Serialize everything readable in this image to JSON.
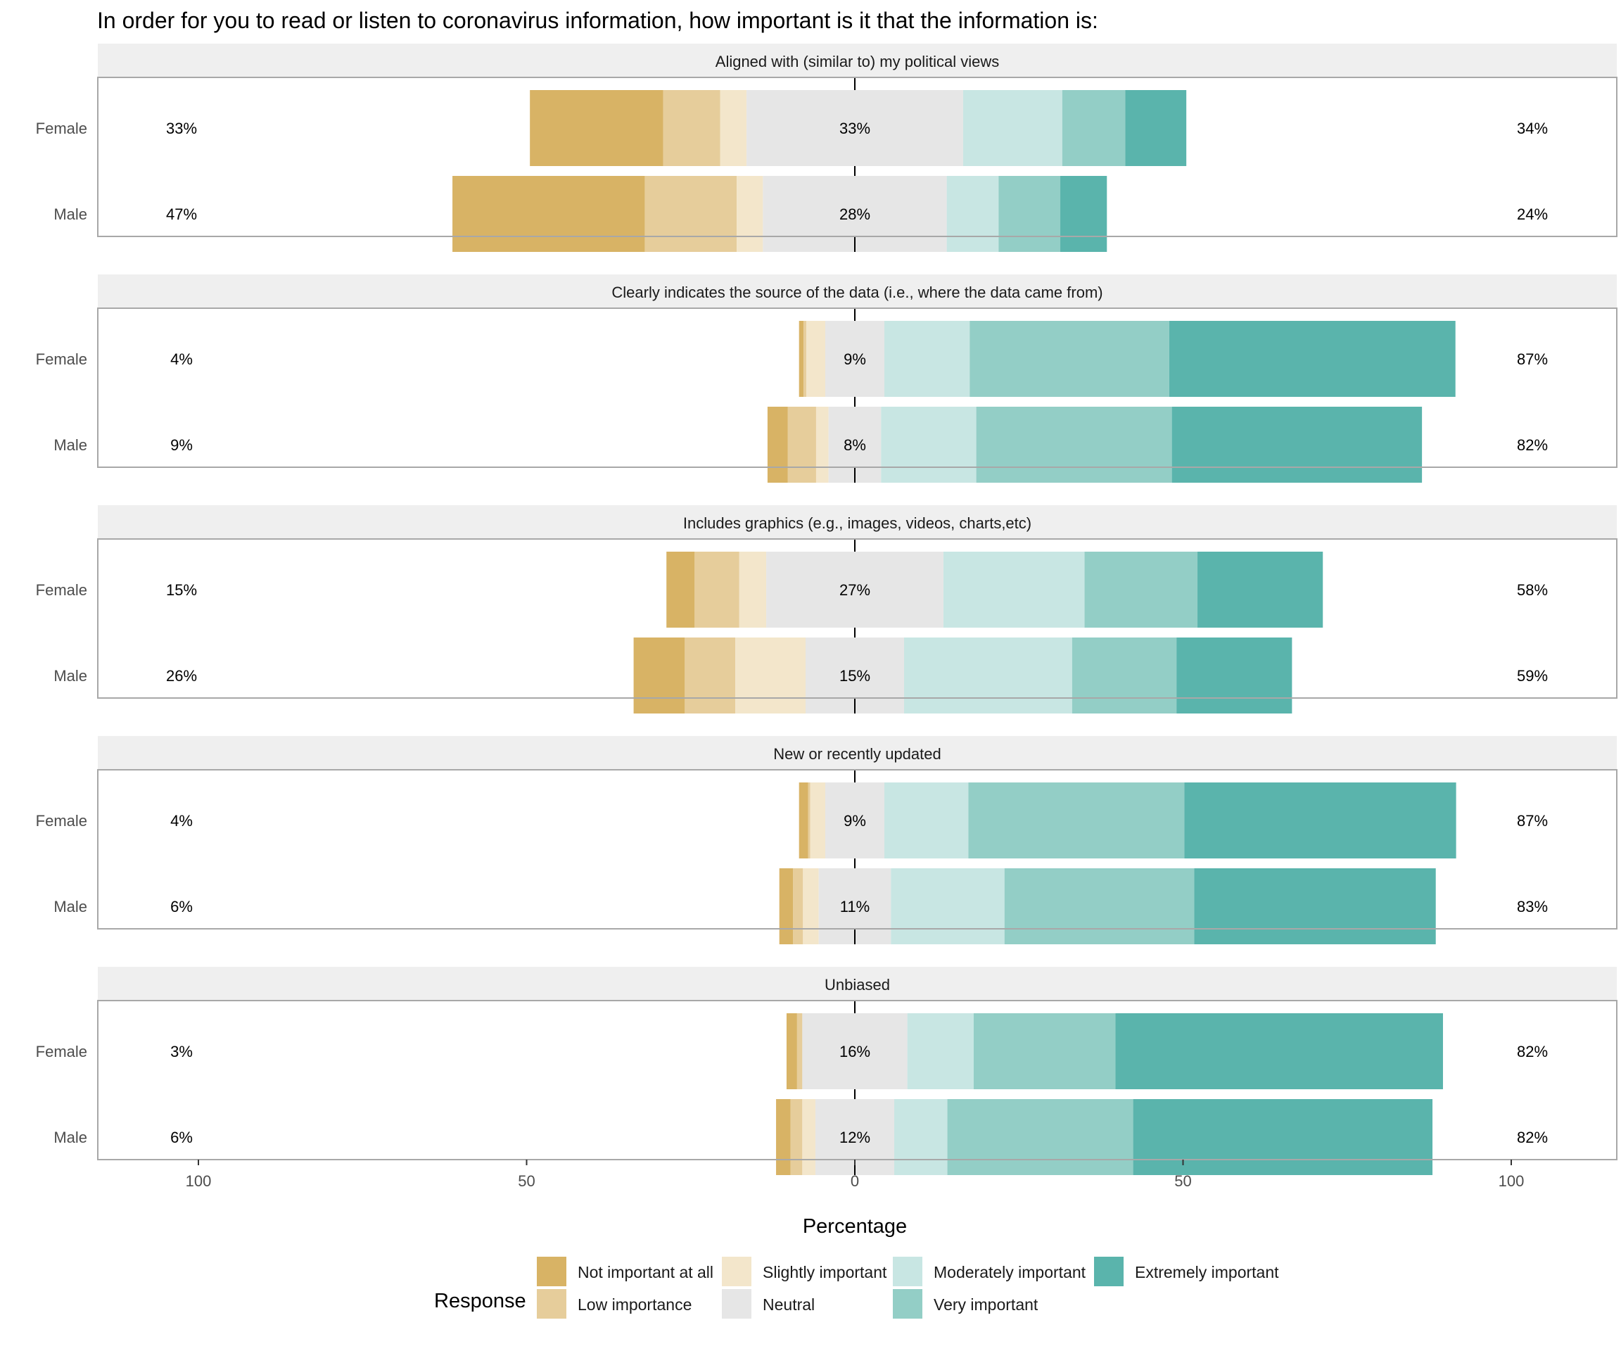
{
  "chart_data": {
    "type": "bar",
    "orientation": "horizontal-diverging",
    "title": "In order for you to read or listen to coronavirus information, how important is it that the information is:",
    "xlabel": "Percentage",
    "xlim": [
      -100,
      100
    ],
    "x_ticks": [
      -100,
      -50,
      0,
      50,
      100
    ],
    "x_tick_labels": [
      "100",
      "50",
      "0",
      "50",
      "100"
    ],
    "legend_title": "Response",
    "legend_position": "bottom",
    "grid": false,
    "categories": [
      "Female",
      "Male"
    ],
    "response_levels": [
      {
        "name": "Not important at all",
        "color": "#D8B365"
      },
      {
        "name": "Low importance",
        "color": "#E6CD9B"
      },
      {
        "name": "Slightly important",
        "color": "#F3E6CB"
      },
      {
        "name": "Neutral",
        "color": "#E6E6E6"
      },
      {
        "name": "Moderately important",
        "color": "#C8E6E3"
      },
      {
        "name": "Very important",
        "color": "#93CEC6"
      },
      {
        "name": "Extremely important",
        "color": "#5AB4AC"
      }
    ],
    "panels": [
      {
        "title": "Aligned with (similar to) my political views",
        "rows": [
          {
            "group": "Female",
            "values": [
              20.3,
              8.7,
              4.0,
              33.0,
              15.1,
              9.6,
              9.3
            ],
            "left_label": "33%",
            "neutral_label": "33%",
            "right_label": "34%"
          },
          {
            "group": "Male",
            "values": [
              29.3,
              14.0,
              4.0,
              28.0,
              7.9,
              9.4,
              7.1
            ],
            "left_label": "47%",
            "neutral_label": "28%",
            "right_label": "24%"
          }
        ]
      },
      {
        "title": "Clearly indicates the source of the data (i.e., where the data came from)",
        "rows": [
          {
            "group": "Female",
            "values": [
              0.7,
              0.4,
              2.9,
              9.0,
              13.0,
              30.4,
              43.6
            ],
            "left_label": "4%",
            "neutral_label": "9%",
            "right_label": "87%"
          },
          {
            "group": "Male",
            "values": [
              3.1,
              4.3,
              1.9,
              8.0,
              14.5,
              29.8,
              38.1
            ],
            "left_label": "9%",
            "neutral_label": "8%",
            "right_label": "82%"
          }
        ]
      },
      {
        "title": "Includes graphics (e.g., images, videos, charts,etc)",
        "rows": [
          {
            "group": "Female",
            "values": [
              4.3,
              6.8,
              4.1,
              27.0,
              21.5,
              17.2,
              19.1
            ],
            "left_label": "15%",
            "neutral_label": "27%",
            "right_label": "58%"
          },
          {
            "group": "Male",
            "values": [
              7.8,
              7.7,
              10.7,
              15.0,
              25.6,
              15.9,
              17.6
            ],
            "left_label": "26%",
            "neutral_label": "15%",
            "right_label": "59%"
          }
        ]
      },
      {
        "title": "New or recently updated",
        "rows": [
          {
            "group": "Female",
            "values": [
              1.4,
              0.3,
              2.3,
              9.0,
              12.8,
              32.9,
              41.4
            ],
            "left_label": "4%",
            "neutral_label": "9%",
            "right_label": "87%"
          },
          {
            "group": "Male",
            "values": [
              2.1,
              1.5,
              2.4,
              11.0,
              17.3,
              28.9,
              36.8
            ],
            "left_label": "6%",
            "neutral_label": "11%",
            "right_label": "83%"
          }
        ]
      },
      {
        "title": "Unbiased",
        "rows": [
          {
            "group": "Female",
            "values": [
              1.6,
              0.8,
              0.0,
              16.0,
              10.1,
              21.6,
              49.9
            ],
            "left_label": "3%",
            "neutral_label": "16%",
            "right_label": "82%"
          },
          {
            "group": "Male",
            "values": [
              2.2,
              1.8,
              2.0,
              12.0,
              8.1,
              28.3,
              45.6
            ],
            "left_label": "6%",
            "neutral_label": "12%",
            "right_label": "82%"
          }
        ]
      }
    ]
  }
}
